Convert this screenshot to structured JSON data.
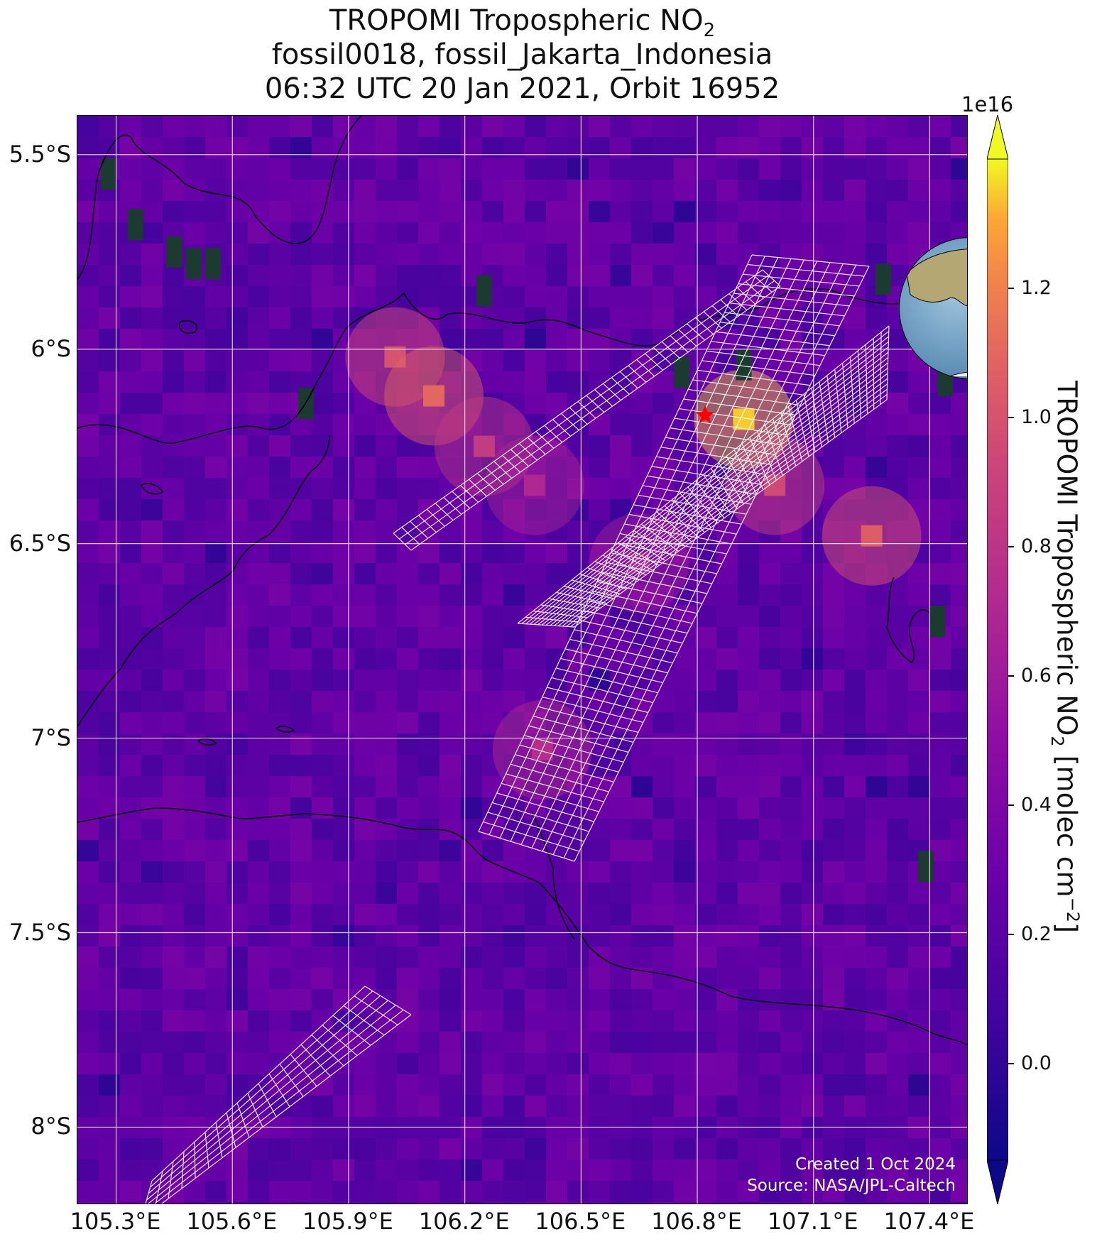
{
  "title": {
    "line1_prefix": "TROPOMI Tropospheric NO",
    "line1_sub": "2",
    "line2": "fossil0018, fossil_Jakarta_Indonesia",
    "line3": "06:32 UTC 20 Jan 2021, Orbit 16952"
  },
  "map": {
    "lon_range": [
      105.2,
      107.5
    ],
    "lat_range": [
      -8.2,
      -5.4
    ],
    "lat_ticks": [
      {
        "value": -5.5,
        "label": "5.5°S"
      },
      {
        "value": -6.0,
        "label": "6°S"
      },
      {
        "value": -6.5,
        "label": "6.5°S"
      },
      {
        "value": -7.0,
        "label": "7°S"
      },
      {
        "value": -7.5,
        "label": "7.5°S"
      },
      {
        "value": -8.0,
        "label": "8°S"
      }
    ],
    "lon_ticks": [
      {
        "value": 105.3,
        "label": "105.3°E"
      },
      {
        "value": 105.6,
        "label": "105.6°E"
      },
      {
        "value": 105.9,
        "label": "105.9°E"
      },
      {
        "value": 106.2,
        "label": "106.2°E"
      },
      {
        "value": 106.5,
        "label": "106.5°E"
      },
      {
        "value": 106.8,
        "label": "106.8°E"
      },
      {
        "value": 107.1,
        "label": "107.1°E"
      },
      {
        "value": 107.4,
        "label": "107.4°E"
      }
    ],
    "target": {
      "name": "fossil_Jakarta_Indonesia",
      "lon": 106.82,
      "lat": -6.17,
      "color": "#ff0000"
    },
    "background_color": "#5a12a6",
    "grid_color": "#ffffff"
  },
  "chart_data": {
    "type": "heatmap",
    "colormap": "plasma",
    "value_range": [
      -0.15,
      1.4
    ],
    "value_exponent": "1e16",
    "units": "molec cm^-2",
    "plumes": [
      {
        "lon": 106.02,
        "lat": -6.02,
        "value": 1.0
      },
      {
        "lon": 106.12,
        "lat": -6.12,
        "value": 1.1
      },
      {
        "lon": 106.25,
        "lat": -6.25,
        "value": 0.85
      },
      {
        "lon": 106.38,
        "lat": -6.35,
        "value": 0.7
      },
      {
        "lon": 106.92,
        "lat": -6.18,
        "value": 1.35
      },
      {
        "lon": 107.0,
        "lat": -6.35,
        "value": 0.95
      },
      {
        "lon": 107.25,
        "lat": -6.48,
        "value": 1.05
      },
      {
        "lon": 106.65,
        "lat": -6.55,
        "value": 0.65
      },
      {
        "lon": 106.4,
        "lat": -7.03,
        "value": 0.75
      }
    ],
    "no_data_pixels": [
      {
        "lon": 105.28,
        "lat": -5.55
      },
      {
        "lon": 105.35,
        "lat": -5.68
      },
      {
        "lon": 105.45,
        "lat": -5.75
      },
      {
        "lon": 105.5,
        "lat": -5.78
      },
      {
        "lon": 105.55,
        "lat": -5.78
      },
      {
        "lon": 105.79,
        "lat": -6.14
      },
      {
        "lon": 106.76,
        "lat": -6.06
      },
      {
        "lon": 106.92,
        "lat": -6.04
      },
      {
        "lon": 106.25,
        "lat": -5.85
      },
      {
        "lon": 107.28,
        "lat": -5.82
      },
      {
        "lon": 107.44,
        "lat": -6.08
      },
      {
        "lon": 107.42,
        "lat": -6.7
      },
      {
        "lon": 107.39,
        "lat": -7.33
      }
    ]
  },
  "colorbar": {
    "exponent_label": "1e16",
    "ticks": [
      {
        "value": 1.2,
        "label": "1.2"
      },
      {
        "value": 1.0,
        "label": "1.0"
      },
      {
        "value": 0.8,
        "label": "0.8"
      },
      {
        "value": 0.6,
        "label": "0.6"
      },
      {
        "value": 0.4,
        "label": "0.4"
      },
      {
        "value": 0.2,
        "label": "0.2"
      },
      {
        "value": 0.0,
        "label": "0.0"
      }
    ],
    "label_prefix": "TROPOMI Tropospheric NO",
    "label_sub": "2",
    "label_mid": " [molec cm",
    "label_sup": "−2",
    "label_suffix": "]"
  },
  "credits": {
    "line1": "Created 1 Oct 2024",
    "line2": "Source: NASA/JPL-Caltech"
  }
}
